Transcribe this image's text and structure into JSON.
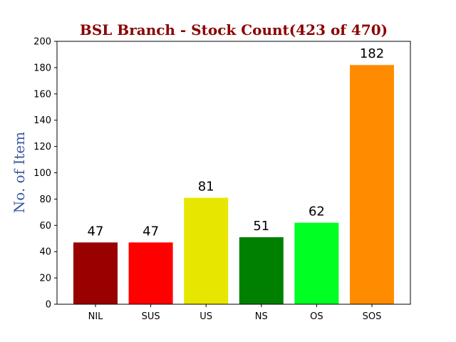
{
  "chart_data": {
    "type": "bar",
    "title": "BSL Branch - Stock Count(423 of 470)",
    "title_color": "#8b0000",
    "xlabel": "",
    "ylabel": "No. of Item",
    "ylabel_color": "#3a5aa0",
    "categories": [
      "NIL",
      "SUS",
      "US",
      "NS",
      "OS",
      "SOS"
    ],
    "values": [
      47,
      47,
      81,
      51,
      62,
      182
    ],
    "data_labels": [
      "47",
      "47",
      "81",
      "51",
      "62",
      "182"
    ],
    "colors": [
      "#990000",
      "#ff0000",
      "#e6e600",
      "#008000",
      "#00ff22",
      "#ff8c00"
    ],
    "ylim": [
      0,
      200
    ],
    "yticks": [
      0,
      20,
      40,
      60,
      80,
      100,
      120,
      140,
      160,
      180,
      200
    ],
    "ytick_labels": [
      "0",
      "20",
      "40",
      "60",
      "80",
      "100",
      "120",
      "140",
      "160",
      "180",
      "200"
    ],
    "grid": false,
    "legend": "none"
  }
}
